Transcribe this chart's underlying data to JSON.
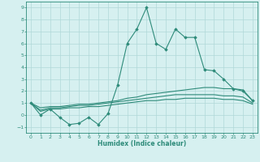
{
  "xlabel": "Humidex (Indice chaleur)",
  "x_values": [
    0,
    1,
    2,
    3,
    4,
    5,
    6,
    7,
    8,
    9,
    10,
    11,
    12,
    13,
    14,
    15,
    16,
    17,
    18,
    19,
    20,
    21,
    22,
    23
  ],
  "line1_y": [
    1,
    0,
    0.5,
    -0.2,
    -0.8,
    -0.7,
    -0.2,
    -0.8,
    0.1,
    2.5,
    6.0,
    7.2,
    9.0,
    6.0,
    5.5,
    7.2,
    6.5,
    6.5,
    3.8,
    3.7,
    3.0,
    2.2,
    2.0,
    1.2
  ],
  "line2_y": [
    1.0,
    0.6,
    0.7,
    0.7,
    0.8,
    0.9,
    0.9,
    1.0,
    1.1,
    1.2,
    1.4,
    1.5,
    1.7,
    1.8,
    1.9,
    2.0,
    2.1,
    2.2,
    2.3,
    2.3,
    2.2,
    2.2,
    2.1,
    1.2
  ],
  "line3_y": [
    1.0,
    0.4,
    0.6,
    0.6,
    0.7,
    0.8,
    0.8,
    0.9,
    1.0,
    1.1,
    1.2,
    1.3,
    1.4,
    1.5,
    1.6,
    1.7,
    1.7,
    1.7,
    1.7,
    1.7,
    1.6,
    1.6,
    1.5,
    1.0
  ],
  "line4_y": [
    1.0,
    0.3,
    0.5,
    0.5,
    0.6,
    0.6,
    0.7,
    0.7,
    0.8,
    0.9,
    1.0,
    1.1,
    1.2,
    1.2,
    1.3,
    1.3,
    1.4,
    1.4,
    1.4,
    1.4,
    1.3,
    1.3,
    1.2,
    0.9
  ],
  "line_color": "#2e8b7a",
  "bg_color": "#d6f0f0",
  "grid_color": "#b0d8d8",
  "ylim": [
    -1.5,
    9.5
  ],
  "xlim": [
    -0.5,
    23.5
  ],
  "yticks": [
    -1,
    0,
    1,
    2,
    3,
    4,
    5,
    6,
    7,
    8,
    9
  ],
  "xticks": [
    0,
    1,
    2,
    3,
    4,
    5,
    6,
    7,
    8,
    9,
    10,
    11,
    12,
    13,
    14,
    15,
    16,
    17,
    18,
    19,
    20,
    21,
    22,
    23
  ]
}
